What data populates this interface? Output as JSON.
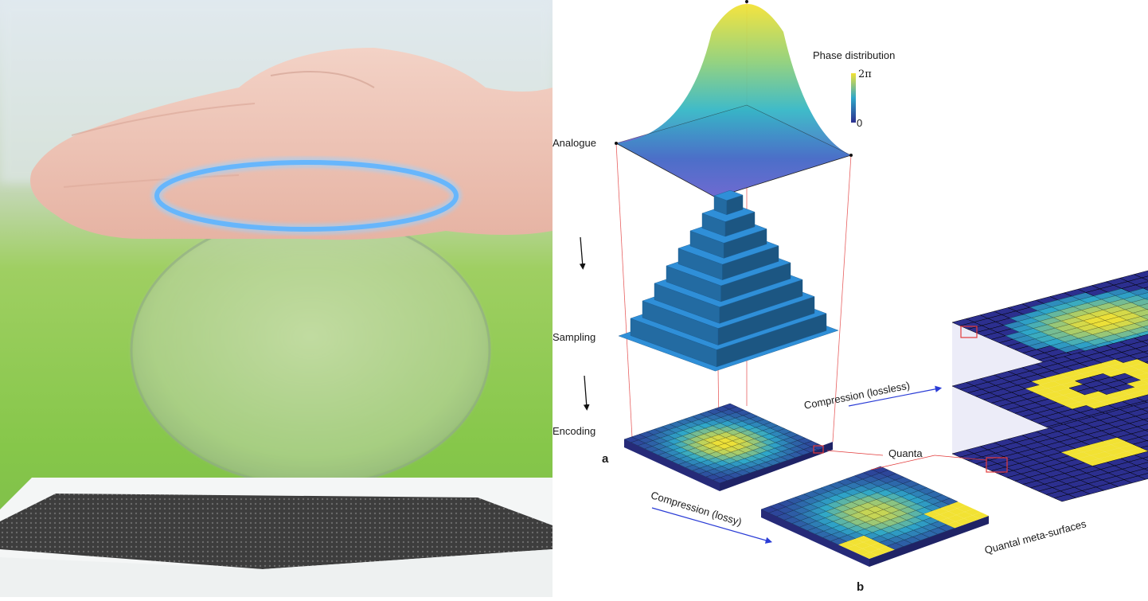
{
  "diagram": {
    "labels": {
      "analogue": "Analogue",
      "sampling": "Sampling",
      "encoding": "Encoding",
      "phase_distribution": "Phase distribution",
      "colorbar_max": "2π",
      "colorbar_min": "0",
      "quanta": "Quanta",
      "compression_lossless": "Compression (lossless)",
      "compression_lossy": "Compression (lossy)",
      "quantal_meta_surfaces": "Quantal meta-surfaces",
      "panel_a": "a",
      "panel_b": "b"
    },
    "colors": {
      "low": "#2c2f8f",
      "mid": "#2fa7c9",
      "high": "#f2e233",
      "sampling_block": "#2f8fd8",
      "projection_line": "#e23a3a",
      "arrow": "#2a3cd6"
    }
  }
}
